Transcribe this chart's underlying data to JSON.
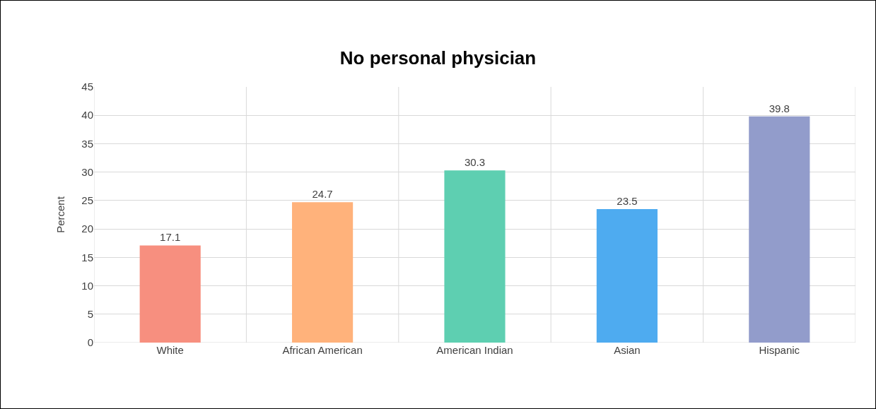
{
  "chart_data": {
    "type": "bar",
    "title": "No personal physician",
    "ylabel": "Percent",
    "categories": [
      "White",
      "African American",
      "American Indian",
      "Asian",
      "Hispanic"
    ],
    "values": [
      17.1,
      24.7,
      30.3,
      23.5,
      39.8
    ],
    "colors": [
      "#f78f7f",
      "#ffb27b",
      "#5ecfb1",
      "#4eabf0",
      "#929ccb"
    ],
    "ylim": [
      0,
      45
    ],
    "yticks": [
      0,
      5,
      10,
      15,
      20,
      25,
      30,
      35,
      40,
      45
    ],
    "grid": true,
    "data_labels": true
  }
}
